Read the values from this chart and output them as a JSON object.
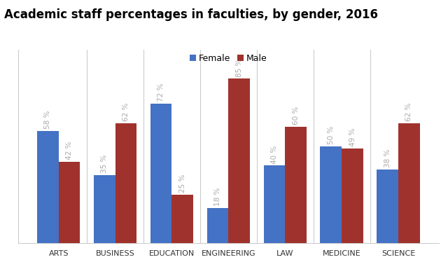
{
  "title": "Academic staff percentages in faculties, by gender, 2016",
  "categories": [
    "ARTS",
    "BUSINESS",
    "EDUCATION",
    "ENGINEERING",
    "LAW",
    "MEDICINE",
    "SCIENCE"
  ],
  "female": [
    58,
    35,
    72,
    18,
    40,
    50,
    38
  ],
  "male": [
    42,
    62,
    25,
    85,
    60,
    49,
    62
  ],
  "female_color": "#4472C4",
  "male_color": "#A0322D",
  "bar_width": 0.38,
  "ylim": [
    0,
    100
  ],
  "legend_labels": [
    "Female",
    "Male"
  ],
  "title_fontsize": 12,
  "label_fontsize": 9,
  "tick_fontsize": 8,
  "annotation_fontsize": 7.5,
  "annotation_color": "#AAAAAA",
  "background_color": "#FFFFFF",
  "plot_bg_color": "#FFFFFF",
  "divider_color": "#CCCCCC",
  "spine_color": "#CCCCCC"
}
